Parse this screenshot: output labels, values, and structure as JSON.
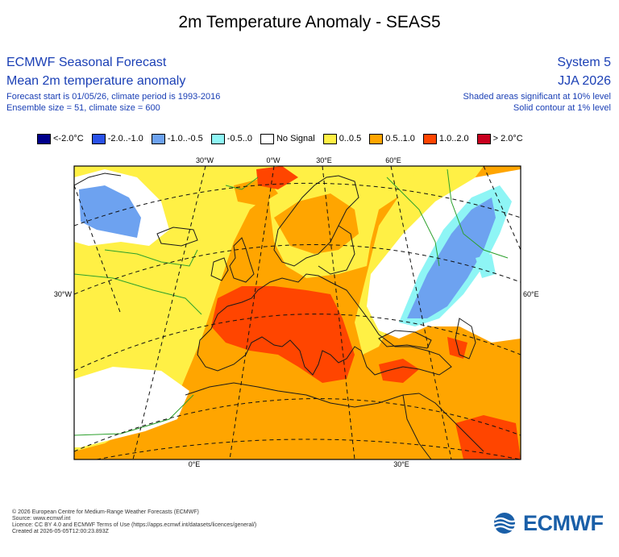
{
  "title": "2m Temperature Anomaly - SEAS5",
  "header_left": {
    "line1": "ECMWF Seasonal Forecast",
    "line2": "Mean 2m temperature anomaly",
    "line3": "Forecast start is 01/05/26, climate period is 1993-2016",
    "line4": "Ensemble size = 51, climate size = 600"
  },
  "header_right": {
    "line1": "System 5",
    "line2": "JJA 2026",
    "line3": "Shaded areas significant at 10% level",
    "line4": "Solid contour at 1% level"
  },
  "legend": [
    {
      "label": "<-2.0°C",
      "color": "#00008b"
    },
    {
      "label": "-2.0..-1.0",
      "color": "#2a52e8"
    },
    {
      "label": "-1.0..-0.5",
      "color": "#6da2f0"
    },
    {
      "label": "-0.5..0",
      "color": "#8ef5f5"
    },
    {
      "label": "No Signal",
      "color": "#ffffff"
    },
    {
      "label": "0..0.5",
      "color": "#fff045"
    },
    {
      "label": "0.5..1.0",
      "color": "#ffa500"
    },
    {
      "label": "1.0..2.0",
      "color": "#ff4500"
    },
    {
      "label": "> 2.0°C",
      "color": "#c8001e"
    }
  ],
  "map_labels": {
    "top": [
      "30°W",
      "0°W",
      "30°E",
      "60°E"
    ],
    "left": "30°W",
    "right": "60°E",
    "bottom": [
      "0°E",
      "30°E"
    ]
  },
  "footer": [
    "© 2026 European Centre for Medium-Range Weather Forecasts (ECMWF)",
    "Source: www.ecmwf.int",
    "Licence: CC BY 4.0 and ECMWF Terms of Use (https://apps.ecmwf.int/datasets/licences/general/)",
    "Created at 2026-05-05T12:00:23.893Z"
  ],
  "logo_text": "ECMWF"
}
